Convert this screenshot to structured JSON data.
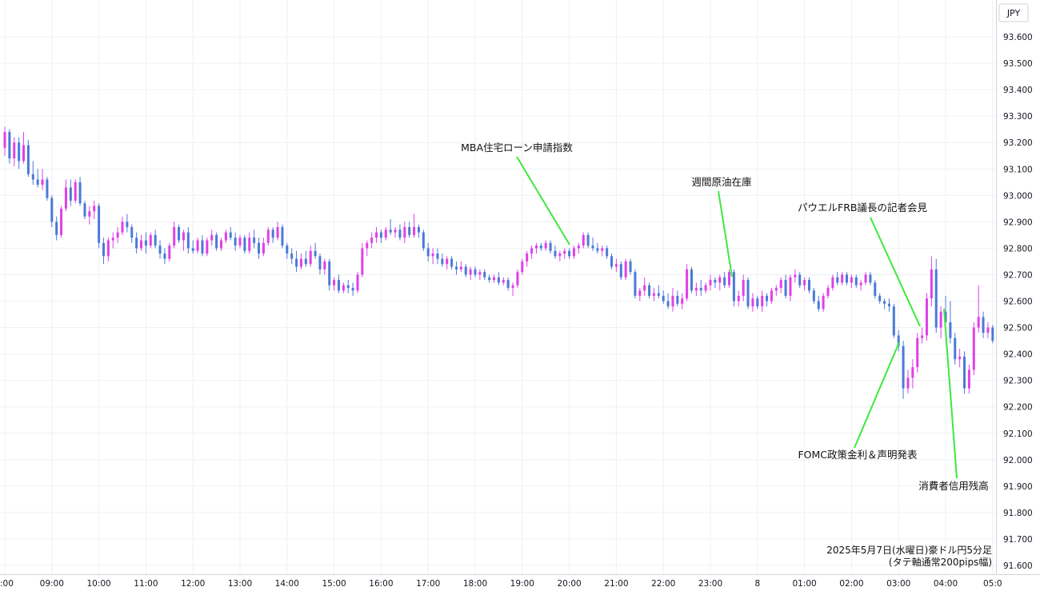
{
  "chart_data": {
    "type": "candlestick",
    "currency_label": "JPY",
    "caption_line1": "2025年5月7日(水曜日)豪ドル円5分足",
    "caption_line2": "(タテ軸通常200pips幅)",
    "y_ticks": [
      "93.600",
      "93.500",
      "93.400",
      "93.300",
      "93.200",
      "93.100",
      "93.000",
      "92.900",
      "92.800",
      "92.700",
      "92.600",
      "92.500",
      "92.400",
      "92.300",
      "92.200",
      "92.100",
      "92.000",
      "91.900",
      "91.800",
      "91.700",
      "91.600"
    ],
    "ylim": [
      91.6,
      93.6
    ],
    "x_ticks": [
      ":00",
      "09:00",
      "10:00",
      "11:00",
      "12:00",
      "13:00",
      "14:00",
      "15:00",
      "16:00",
      "17:00",
      "18:00",
      "19:00",
      "20:00",
      "21:00",
      "22:00",
      "23:00",
      "8",
      "01:00",
      "02:00",
      "03:00",
      "04:00",
      "05:0"
    ],
    "colors": {
      "up": "#e040e8",
      "down": "#4a7ad8",
      "annotation": "#3ee83e",
      "grid": "#eef0f4"
    },
    "ohlc": [
      [
        93.18,
        93.26,
        93.15,
        93.24
      ],
      [
        93.24,
        93.25,
        93.12,
        93.14
      ],
      [
        93.14,
        93.22,
        93.11,
        93.2
      ],
      [
        93.2,
        93.22,
        93.1,
        93.13
      ],
      [
        93.13,
        93.24,
        93.12,
        93.19
      ],
      [
        93.19,
        93.21,
        93.07,
        93.08
      ],
      [
        93.08,
        93.13,
        93.04,
        93.06
      ],
      [
        93.06,
        93.1,
        93.03,
        93.04
      ],
      [
        93.04,
        93.1,
        93.02,
        93.06
      ],
      [
        93.06,
        93.07,
        92.98,
        92.99
      ],
      [
        92.99,
        93.0,
        92.88,
        92.9
      ],
      [
        92.9,
        92.92,
        92.83,
        92.85
      ],
      [
        92.85,
        92.96,
        92.84,
        92.95
      ],
      [
        92.95,
        93.06,
        92.94,
        93.03
      ],
      [
        93.03,
        93.06,
        92.96,
        92.98
      ],
      [
        92.98,
        93.06,
        92.97,
        93.05
      ],
      [
        93.05,
        93.07,
        92.96,
        92.97
      ],
      [
        92.97,
        92.98,
        92.91,
        92.92
      ],
      [
        92.92,
        92.96,
        92.89,
        92.94
      ],
      [
        92.94,
        92.98,
        92.91,
        92.96
      ],
      [
        92.96,
        92.97,
        92.8,
        92.82
      ],
      [
        92.82,
        92.84,
        92.74,
        92.77
      ],
      [
        92.77,
        92.84,
        92.75,
        92.83
      ],
      [
        92.83,
        92.86,
        92.8,
        92.84
      ],
      [
        92.84,
        92.88,
        92.82,
        92.86
      ],
      [
        92.86,
        92.92,
        92.85,
        92.9
      ],
      [
        92.9,
        92.93,
        92.86,
        92.88
      ],
      [
        92.88,
        92.89,
        92.82,
        92.84
      ],
      [
        92.84,
        92.86,
        92.78,
        92.8
      ],
      [
        92.8,
        92.85,
        92.79,
        92.83
      ],
      [
        92.83,
        92.86,
        92.78,
        92.81
      ],
      [
        92.81,
        92.86,
        92.8,
        92.85
      ],
      [
        92.85,
        92.87,
        92.8,
        92.81
      ],
      [
        92.81,
        92.83,
        92.76,
        92.78
      ],
      [
        92.78,
        92.8,
        92.74,
        92.76
      ],
      [
        92.76,
        92.82,
        92.75,
        92.81
      ],
      [
        92.81,
        92.9,
        92.8,
        92.88
      ],
      [
        92.88,
        92.89,
        92.82,
        92.83
      ],
      [
        92.83,
        92.87,
        92.79,
        92.86
      ],
      [
        92.86,
        92.88,
        92.78,
        92.8
      ],
      [
        92.8,
        92.83,
        92.78,
        92.79
      ],
      [
        92.79,
        92.84,
        92.78,
        92.83
      ],
      [
        92.83,
        92.85,
        92.77,
        92.78
      ],
      [
        92.78,
        92.84,
        92.77,
        92.83
      ],
      [
        92.83,
        92.87,
        92.81,
        92.85
      ],
      [
        92.85,
        92.86,
        92.79,
        92.8
      ],
      [
        92.8,
        92.84,
        92.79,
        92.83
      ],
      [
        92.83,
        92.87,
        92.82,
        92.86
      ],
      [
        92.86,
        92.88,
        92.83,
        92.84
      ],
      [
        92.84,
        92.86,
        92.79,
        92.81
      ],
      [
        92.81,
        92.85,
        92.8,
        92.84
      ],
      [
        92.84,
        92.85,
        92.78,
        92.79
      ],
      [
        92.79,
        92.86,
        92.78,
        92.84
      ],
      [
        92.84,
        92.87,
        92.8,
        92.82
      ],
      [
        92.82,
        92.84,
        92.76,
        92.78
      ],
      [
        92.78,
        92.84,
        92.77,
        92.82
      ],
      [
        92.82,
        92.88,
        92.81,
        92.87
      ],
      [
        92.87,
        92.88,
        92.82,
        92.84
      ],
      [
        92.84,
        92.9,
        92.83,
        92.88
      ],
      [
        92.88,
        92.89,
        92.8,
        92.81
      ],
      [
        92.81,
        92.82,
        92.76,
        92.78
      ],
      [
        92.78,
        92.8,
        92.74,
        92.76
      ],
      [
        92.76,
        92.79,
        92.71,
        92.73
      ],
      [
        92.73,
        92.78,
        92.72,
        92.76
      ],
      [
        92.76,
        92.79,
        92.73,
        92.74
      ],
      [
        92.74,
        92.81,
        92.73,
        92.79
      ],
      [
        92.79,
        92.82,
        92.76,
        92.77
      ],
      [
        92.77,
        92.78,
        92.7,
        92.72
      ],
      [
        92.72,
        92.76,
        92.7,
        92.75
      ],
      [
        92.75,
        92.76,
        92.64,
        92.66
      ],
      [
        92.66,
        92.69,
        92.64,
        92.68
      ],
      [
        92.68,
        92.7,
        92.63,
        92.64
      ],
      [
        92.64,
        92.67,
        92.63,
        92.66
      ],
      [
        92.66,
        92.68,
        92.63,
        92.65
      ],
      [
        92.65,
        92.67,
        92.62,
        92.64
      ],
      [
        92.64,
        92.71,
        92.63,
        92.7
      ],
      [
        92.7,
        92.82,
        92.69,
        92.8
      ],
      [
        92.8,
        92.83,
        92.77,
        92.82
      ],
      [
        92.82,
        92.86,
        92.8,
        92.84
      ],
      [
        92.84,
        92.88,
        92.82,
        92.86
      ],
      [
        92.86,
        92.87,
        92.82,
        92.84
      ],
      [
        92.84,
        92.88,
        92.83,
        92.87
      ],
      [
        92.87,
        92.91,
        92.85,
        92.86
      ],
      [
        92.86,
        92.88,
        92.84,
        92.87
      ],
      [
        92.87,
        92.89,
        92.83,
        92.84
      ],
      [
        92.84,
        92.9,
        92.82,
        92.88
      ],
      [
        92.88,
        92.9,
        92.84,
        92.85
      ],
      [
        92.85,
        92.93,
        92.84,
        92.88
      ],
      [
        92.88,
        92.89,
        92.84,
        92.86
      ],
      [
        92.86,
        92.87,
        92.79,
        92.8
      ],
      [
        92.8,
        92.82,
        92.75,
        92.77
      ],
      [
        92.77,
        92.8,
        92.74,
        92.78
      ],
      [
        92.78,
        92.8,
        92.74,
        92.76
      ],
      [
        92.76,
        92.78,
        92.73,
        92.74
      ],
      [
        92.74,
        92.77,
        92.72,
        92.76
      ],
      [
        92.76,
        92.77,
        92.72,
        92.73
      ],
      [
        92.73,
        92.75,
        92.7,
        92.72
      ],
      [
        92.72,
        92.75,
        92.71,
        92.73
      ],
      [
        92.73,
        92.74,
        92.69,
        92.7
      ],
      [
        92.7,
        92.73,
        92.68,
        92.72
      ],
      [
        92.72,
        92.73,
        92.69,
        92.7
      ],
      [
        92.7,
        92.72,
        92.68,
        92.71
      ],
      [
        92.71,
        92.72,
        92.68,
        92.69
      ],
      [
        92.69,
        92.7,
        92.67,
        92.68
      ],
      [
        92.68,
        92.7,
        92.67,
        92.69
      ],
      [
        92.69,
        92.71,
        92.66,
        92.67
      ],
      [
        92.67,
        92.69,
        92.66,
        92.68
      ],
      [
        92.68,
        92.69,
        92.64,
        92.65
      ],
      [
        92.65,
        92.67,
        92.62,
        92.66
      ],
      [
        92.66,
        92.72,
        92.65,
        92.71
      ],
      [
        92.71,
        92.76,
        92.7,
        92.75
      ],
      [
        92.75,
        92.79,
        92.73,
        92.78
      ],
      [
        92.78,
        92.81,
        92.76,
        92.8
      ],
      [
        92.8,
        92.82,
        92.78,
        92.81
      ],
      [
        92.81,
        92.82,
        92.79,
        92.8
      ],
      [
        92.8,
        92.83,
        92.79,
        92.82
      ],
      [
        92.82,
        92.83,
        92.78,
        92.79
      ],
      [
        92.79,
        92.81,
        92.76,
        92.77
      ],
      [
        92.77,
        92.79,
        92.75,
        92.78
      ],
      [
        92.78,
        92.8,
        92.76,
        92.79
      ],
      [
        92.79,
        92.8,
        92.76,
        92.77
      ],
      [
        92.77,
        92.81,
        92.76,
        92.8
      ],
      [
        92.8,
        92.82,
        92.78,
        92.81
      ],
      [
        92.81,
        92.86,
        92.8,
        92.85
      ],
      [
        92.85,
        92.86,
        92.8,
        92.81
      ],
      [
        92.81,
        92.84,
        92.79,
        92.8
      ],
      [
        92.8,
        92.82,
        92.78,
        92.79
      ],
      [
        92.79,
        92.81,
        92.77,
        92.8
      ],
      [
        92.8,
        92.81,
        92.76,
        92.77
      ],
      [
        92.77,
        92.78,
        92.72,
        92.73
      ],
      [
        92.73,
        92.76,
        92.71,
        92.74
      ],
      [
        92.74,
        92.75,
        92.68,
        92.69
      ],
      [
        92.69,
        92.76,
        92.68,
        92.75
      ],
      [
        92.75,
        92.76,
        92.7,
        92.71
      ],
      [
        92.71,
        92.72,
        92.61,
        92.62
      ],
      [
        92.62,
        92.65,
        92.6,
        92.64
      ],
      [
        92.64,
        92.69,
        92.62,
        92.66
      ],
      [
        92.66,
        92.67,
        92.61,
        92.62
      ],
      [
        92.62,
        92.65,
        92.6,
        92.63
      ],
      [
        92.63,
        92.66,
        92.61,
        92.62
      ],
      [
        92.62,
        92.64,
        92.59,
        92.6
      ],
      [
        92.6,
        92.63,
        92.57,
        92.58
      ],
      [
        92.58,
        92.65,
        92.56,
        92.62
      ],
      [
        92.62,
        92.64,
        92.58,
        92.59
      ],
      [
        92.59,
        92.63,
        92.57,
        92.61
      ],
      [
        92.61,
        92.74,
        92.6,
        92.72
      ],
      [
        92.72,
        92.73,
        92.63,
        92.64
      ],
      [
        92.64,
        92.67,
        92.62,
        92.65
      ],
      [
        92.65,
        92.68,
        92.62,
        92.64
      ],
      [
        92.64,
        92.67,
        92.63,
        92.66
      ],
      [
        92.66,
        92.7,
        92.64,
        92.68
      ],
      [
        92.68,
        92.69,
        92.65,
        92.67
      ],
      [
        92.67,
        92.7,
        92.64,
        92.69
      ],
      [
        92.69,
        92.71,
        92.65,
        92.66
      ],
      [
        92.66,
        92.72,
        92.65,
        92.71
      ],
      [
        92.71,
        92.72,
        92.58,
        92.6
      ],
      [
        92.6,
        92.64,
        92.58,
        92.62
      ],
      [
        92.62,
        92.7,
        92.6,
        92.68
      ],
      [
        92.68,
        92.69,
        92.57,
        92.58
      ],
      [
        92.58,
        92.63,
        92.56,
        92.61
      ],
      [
        92.61,
        92.62,
        92.57,
        92.58
      ],
      [
        92.58,
        92.64,
        92.56,
        92.62
      ],
      [
        92.62,
        92.63,
        92.58,
        92.6
      ],
      [
        92.6,
        92.65,
        92.59,
        92.64
      ],
      [
        92.64,
        92.66,
        92.62,
        92.65
      ],
      [
        92.65,
        92.69,
        92.63,
        92.68
      ],
      [
        92.68,
        92.7,
        92.61,
        92.62
      ],
      [
        92.62,
        92.7,
        92.6,
        92.69
      ],
      [
        92.69,
        92.72,
        92.67,
        92.7
      ],
      [
        92.7,
        92.71,
        92.65,
        92.66
      ],
      [
        92.66,
        92.69,
        92.64,
        92.68
      ],
      [
        92.68,
        92.69,
        92.63,
        92.64
      ],
      [
        92.64,
        92.65,
        92.59,
        92.6
      ],
      [
        92.6,
        92.62,
        92.56,
        92.57
      ],
      [
        92.57,
        92.63,
        92.56,
        92.62
      ],
      [
        92.62,
        92.66,
        92.61,
        92.65
      ],
      [
        92.65,
        92.7,
        92.64,
        92.69
      ],
      [
        92.69,
        92.71,
        92.66,
        92.67
      ],
      [
        92.67,
        92.71,
        92.66,
        92.7
      ],
      [
        92.7,
        92.71,
        92.66,
        92.67
      ],
      [
        92.67,
        92.7,
        92.65,
        92.69
      ],
      [
        92.69,
        92.7,
        92.65,
        92.66
      ],
      [
        92.66,
        92.68,
        92.64,
        92.67
      ],
      [
        92.67,
        92.71,
        92.66,
        92.7
      ],
      [
        92.7,
        92.71,
        92.66,
        92.67
      ],
      [
        92.67,
        92.68,
        92.61,
        92.62
      ],
      [
        92.62,
        92.63,
        92.59,
        92.6
      ],
      [
        92.6,
        92.61,
        92.57,
        92.59
      ],
      [
        92.59,
        92.61,
        92.56,
        92.58
      ],
      [
        92.58,
        92.59,
        92.46,
        92.47
      ],
      [
        92.47,
        92.49,
        92.41,
        92.43
      ],
      [
        92.43,
        92.45,
        92.23,
        92.27
      ],
      [
        92.27,
        92.34,
        92.25,
        92.31
      ],
      [
        92.31,
        92.38,
        92.27,
        92.35
      ],
      [
        92.35,
        92.48,
        92.33,
        92.46
      ],
      [
        92.46,
        92.5,
        92.44,
        92.47
      ],
      [
        92.47,
        92.63,
        92.45,
        92.61
      ],
      [
        92.61,
        92.77,
        92.58,
        92.72
      ],
      [
        92.72,
        92.76,
        92.48,
        92.5
      ],
      [
        92.5,
        92.58,
        92.46,
        92.56
      ],
      [
        92.56,
        92.62,
        92.5,
        92.52
      ],
      [
        92.52,
        92.6,
        92.44,
        92.46
      ],
      [
        92.46,
        92.48,
        92.36,
        92.38
      ],
      [
        92.38,
        92.42,
        92.35,
        92.39
      ],
      [
        92.39,
        92.41,
        92.25,
        92.27
      ],
      [
        92.27,
        92.36,
        92.25,
        92.34
      ],
      [
        92.34,
        92.52,
        92.32,
        92.5
      ],
      [
        92.5,
        92.66,
        92.48,
        92.54
      ],
      [
        92.54,
        92.56,
        92.46,
        92.48
      ],
      [
        92.48,
        92.52,
        92.46,
        92.5
      ],
      [
        92.5,
        92.51,
        92.44,
        92.45
      ]
    ],
    "annotations": [
      {
        "text": "MBA住宅ローン申請指数"
      },
      {
        "text": "週間原油在庫"
      },
      {
        "text": "パウエルFRB議長の記者会見"
      },
      {
        "text": "FOMC政策金利＆声明発表"
      },
      {
        "text": "消費者信用残高"
      }
    ]
  }
}
